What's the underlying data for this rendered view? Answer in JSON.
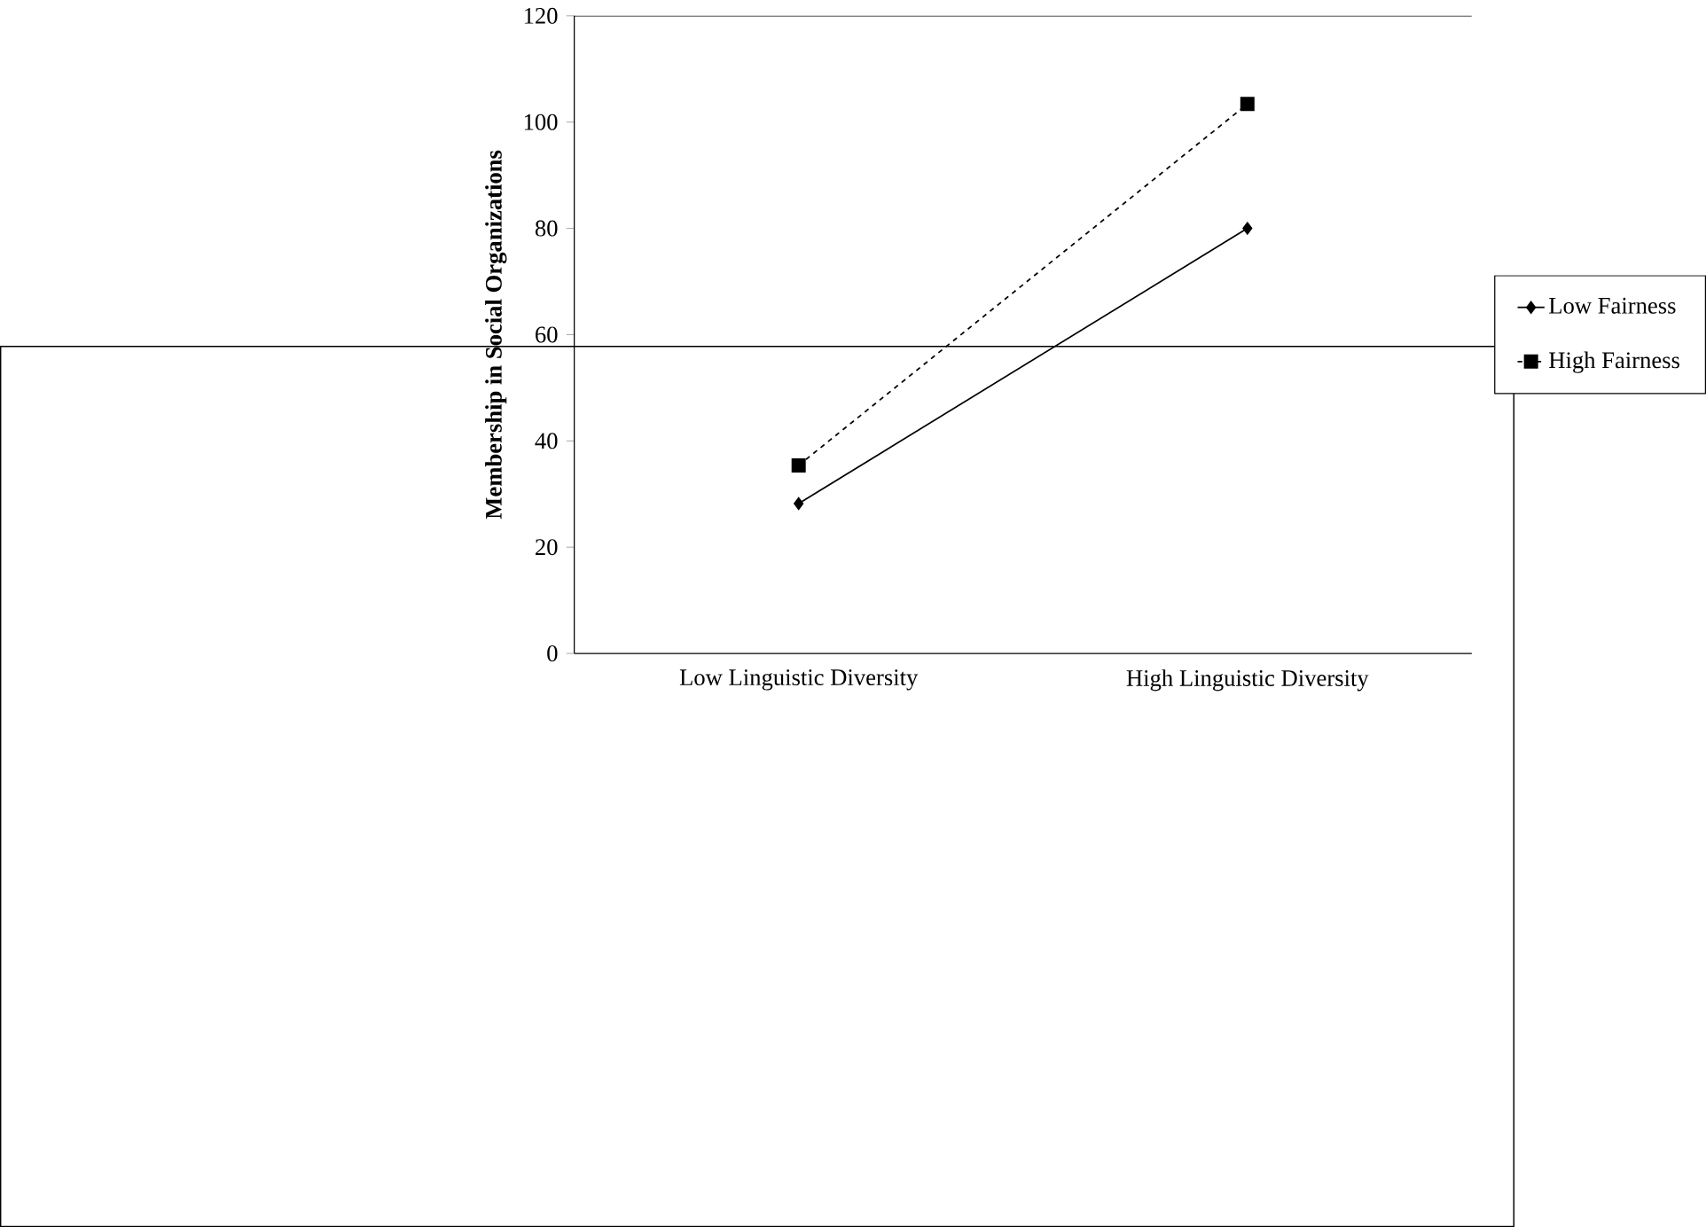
{
  "chart_data": {
    "type": "line",
    "ylabel": "Membership in Social Organizations",
    "categories": [
      "Low Linguistic Diversity",
      "High Linguistic Diversity"
    ],
    "series": [
      {
        "name": "Low Fairness",
        "color": "#000000",
        "values": [
          28.2,
          80
        ],
        "marker": "diamond",
        "line_style": "solid"
      },
      {
        "name": "High Fairness",
        "color": "#000000",
        "values": [
          35.4,
          103.4
        ],
        "marker": "square",
        "line_style": "dashed"
      }
    ],
    "ylim": [
      0,
      120
    ],
    "yticks": [
      0,
      20,
      40,
      60,
      80,
      100,
      120
    ],
    "legend": "right",
    "grid": false
  }
}
